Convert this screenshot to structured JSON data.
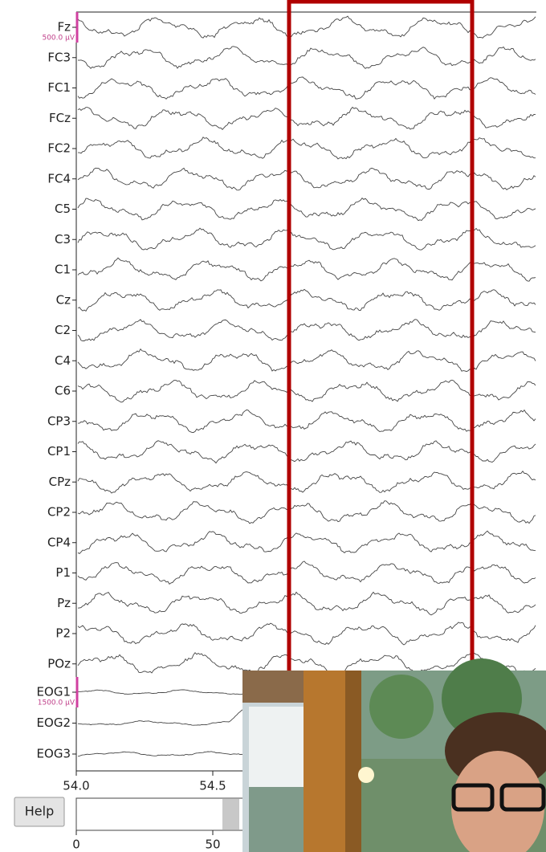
{
  "channels": [
    "Fz",
    "FC3",
    "FC1",
    "FCz",
    "FC2",
    "FC4",
    "C5",
    "C3",
    "C1",
    "Cz",
    "C2",
    "C4",
    "C6",
    "CP3",
    "CP1",
    "CPz",
    "CP2",
    "CP4",
    "P1",
    "Pz",
    "P2",
    "POz"
  ],
  "eog_channels": [
    "EOG1",
    "EOG2",
    "EOG3"
  ],
  "eeg_scale": "500.0 µV",
  "eog_scale": "1500.0 µV",
  "time_ticks": [
    "54.0",
    "54.5"
  ],
  "help_button": "Help",
  "scroll_ticks": [
    "0",
    "50"
  ]
}
